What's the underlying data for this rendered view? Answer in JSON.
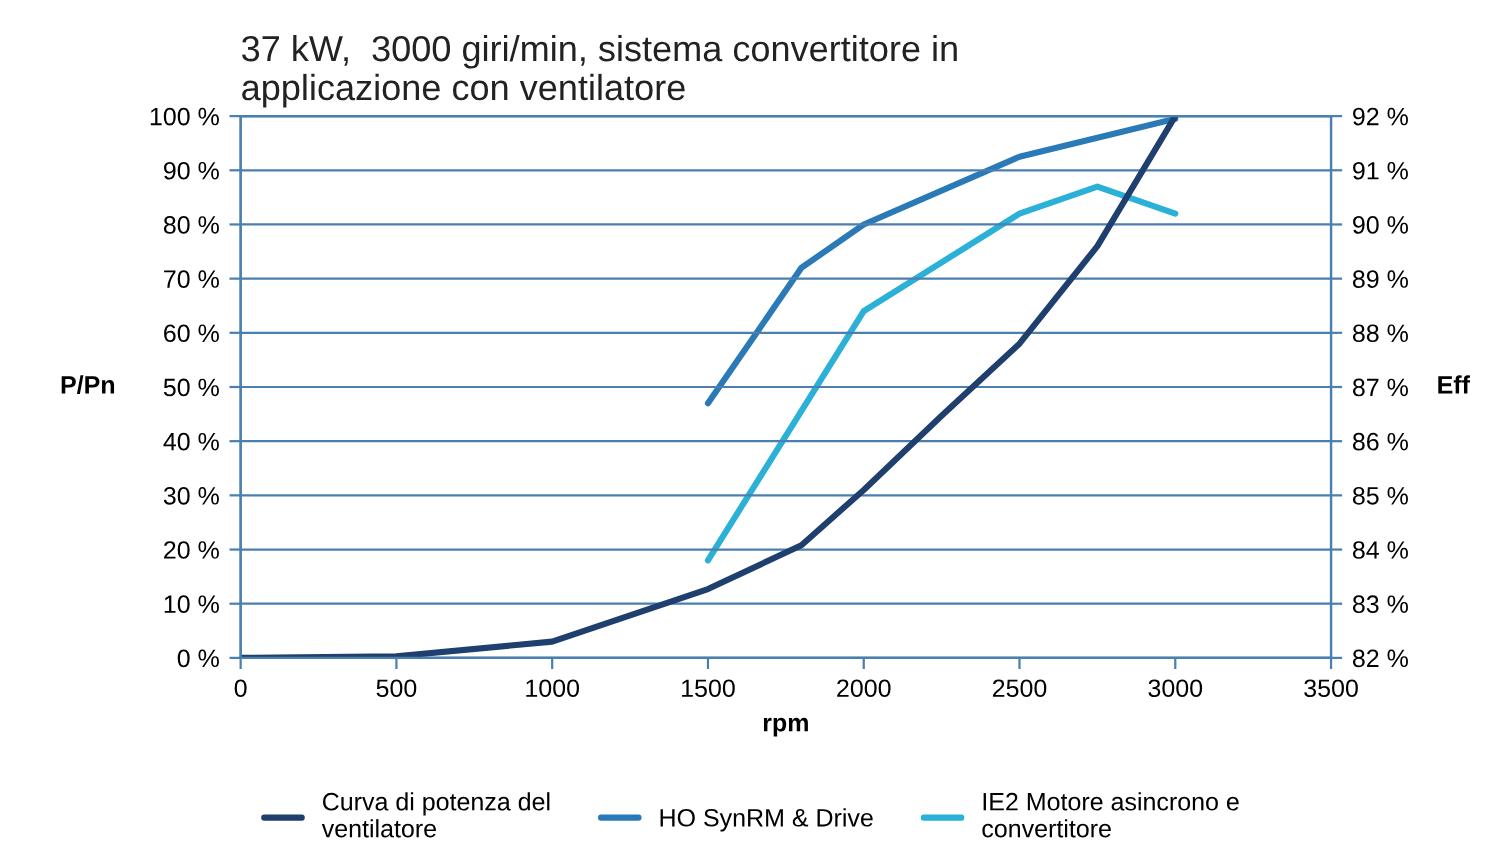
{
  "chart_data": {
    "type": "line",
    "title": "37 kW,  3000 giri/min, sistema convertitore in\napplicazione con ventilatore",
    "xlabel": "rpm",
    "ylabel": "P/Pn",
    "y2label": "Eff",
    "xlim": [
      0,
      3500
    ],
    "xticks": [
      0,
      500,
      1000,
      1500,
      2000,
      2500,
      3000,
      3500
    ],
    "ylim": [
      0,
      100
    ],
    "yticks": [
      {
        "value": 0,
        "label": "0 %"
      },
      {
        "value": 10,
        "label": "10 %"
      },
      {
        "value": 20,
        "label": "20 %"
      },
      {
        "value": 30,
        "label": "30 %"
      },
      {
        "value": 40,
        "label": "40 %"
      },
      {
        "value": 50,
        "label": "50 %"
      },
      {
        "value": 60,
        "label": "60 %"
      },
      {
        "value": 70,
        "label": "70 %"
      },
      {
        "value": 80,
        "label": "80 %"
      },
      {
        "value": 90,
        "label": "90 %"
      },
      {
        "value": 100,
        "label": "100 %"
      }
    ],
    "y2lim": [
      82,
      92
    ],
    "y2ticks": [
      {
        "value": 82,
        "label": "82 %"
      },
      {
        "value": 83,
        "label": "83 %"
      },
      {
        "value": 84,
        "label": "84 %"
      },
      {
        "value": 85,
        "label": "85 %"
      },
      {
        "value": 86,
        "label": "86 %"
      },
      {
        "value": 87,
        "label": "87 %"
      },
      {
        "value": 88,
        "label": "88 %"
      },
      {
        "value": 89,
        "label": "89 %"
      },
      {
        "value": 90,
        "label": "90 %"
      },
      {
        "value": 91,
        "label": "91 %"
      },
      {
        "value": 92,
        "label": "92 %"
      }
    ],
    "grid": "y",
    "legend": "bottom",
    "series": [
      {
        "name": "Curva di potenza del\nventilatore",
        "color": "#1f3f6e",
        "x": [
          0,
          500,
          1000,
          1500,
          1800,
          2000,
          2250,
          2500,
          2750,
          3000
        ],
        "values": [
          0,
          0.3,
          3,
          12.7,
          20.8,
          31,
          44.7,
          58,
          76,
          100
        ]
      },
      {
        "name": "HO SynRM & Drive",
        "color": "#2a7ab8",
        "axis": "y2",
        "x": [
          1500,
          1800,
          2000,
          2500,
          3000
        ],
        "values": [
          86.7,
          89.2,
          90.0,
          91.25,
          91.95
        ]
      },
      {
        "name": "IE2 Motore asincrono e\nconvertitore",
        "color": "#2bb0d8",
        "axis": "y2",
        "x": [
          1500,
          1750,
          2000,
          2500,
          2750,
          3000
        ],
        "values": [
          83.8,
          86.1,
          88.4,
          90.2,
          90.7,
          90.2
        ]
      }
    ]
  }
}
